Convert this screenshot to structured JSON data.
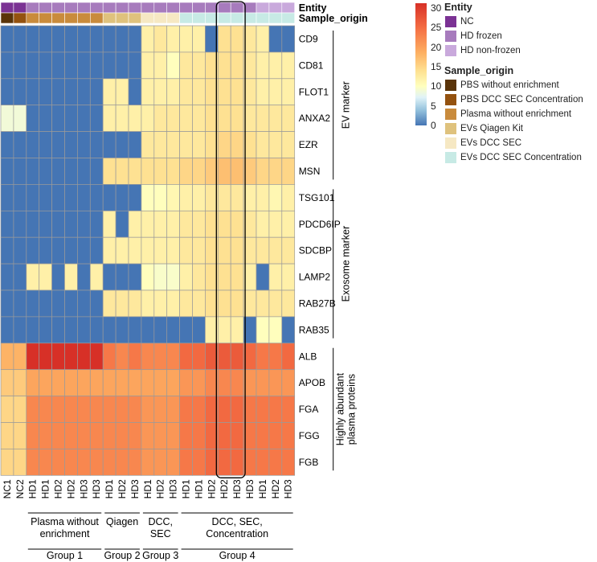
{
  "chart_data": {
    "type": "heatmap",
    "annotation_titles": {
      "entity": "Entity",
      "sample_origin": "Sample_origin"
    },
    "columns": [
      "NC1",
      "NC2",
      "HD1",
      "HD1",
      "HD2",
      "HD2",
      "HD3",
      "HD3",
      "HD1",
      "HD2",
      "HD3",
      "HD1",
      "HD2",
      "HD3",
      "HD1",
      "HD1",
      "HD2",
      "HD2",
      "HD3",
      "HD3",
      "HD1",
      "HD2",
      "HD3"
    ],
    "column_entity": [
      "NC",
      "NC",
      "HD frozen",
      "HD frozen",
      "HD frozen",
      "HD frozen",
      "HD frozen",
      "HD frozen",
      "HD frozen",
      "HD frozen",
      "HD frozen",
      "HD frozen",
      "HD frozen",
      "HD frozen",
      "HD frozen",
      "HD frozen",
      "HD frozen",
      "HD frozen",
      "HD frozen",
      "HD frozen",
      "HD non-frozen",
      "HD non-frozen",
      "HD non-frozen"
    ],
    "column_origin": [
      "PBS without enrichment",
      "PBS DCC SEC Concentration",
      "Plasma without enrichment",
      "Plasma without enrichment",
      "Plasma without enrichment",
      "Plasma without enrichment",
      "Plasma without enrichment",
      "Plasma without enrichment",
      "EVs Qiagen Kit",
      "EVs Qiagen Kit",
      "EVs Qiagen Kit",
      "EVs DCC SEC",
      "EVs DCC SEC",
      "EVs DCC SEC",
      "EVs DCC SEC Concentration",
      "EVs DCC SEC Concentration",
      "EVs DCC SEC Concentration",
      "EVs DCC SEC Concentration",
      "EVs DCC SEC Concentration",
      "EVs DCC SEC Concentration",
      "EVs DCC SEC Concentration",
      "EVs DCC SEC Concentration",
      "EVs DCC SEC Concentration"
    ],
    "rows": [
      "CD9",
      "CD81",
      "FLOT1",
      "ANXA2",
      "EZR",
      "MSN",
      "TSG101",
      "PDCD6IP",
      "SDCBP",
      "LAMP2",
      "RAB27B",
      "RAB35",
      "ALB",
      "APOB",
      "FGA",
      "FGG",
      "FGB"
    ],
    "values": [
      [
        0,
        0,
        0,
        0,
        0,
        0,
        0,
        0,
        0,
        0,
        0,
        15,
        16,
        15,
        15,
        15,
        0,
        17,
        17,
        16,
        15,
        0,
        0
      ],
      [
        0,
        0,
        0,
        0,
        0,
        0,
        0,
        0,
        0,
        0,
        0,
        15,
        15,
        13,
        16,
        16,
        17,
        17,
        17,
        16,
        15,
        15,
        15
      ],
      [
        0,
        0,
        0,
        0,
        0,
        0,
        0,
        0,
        15,
        15,
        0,
        15,
        15,
        15,
        16,
        16,
        17,
        17,
        17,
        16,
        15,
        15,
        15
      ],
      [
        11,
        11,
        0,
        0,
        0,
        0,
        0,
        0,
        15,
        15,
        15,
        15,
        16,
        16,
        16,
        16,
        17,
        17,
        17,
        16,
        16,
        16,
        16
      ],
      [
        0,
        0,
        0,
        0,
        0,
        0,
        0,
        0,
        0,
        0,
        0,
        16,
        16,
        16,
        16,
        16,
        17,
        18,
        18,
        17,
        16,
        16,
        16
      ],
      [
        0,
        0,
        0,
        0,
        0,
        0,
        0,
        0,
        17,
        17,
        17,
        17,
        17,
        17,
        18,
        18,
        19,
        20,
        20,
        19,
        18,
        18,
        18
      ],
      [
        0,
        0,
        0,
        0,
        0,
        0,
        0,
        0,
        0,
        0,
        0,
        13,
        13,
        14,
        15,
        15,
        16,
        16,
        16,
        15,
        15,
        14,
        15
      ],
      [
        0,
        0,
        0,
        0,
        0,
        0,
        0,
        0,
        15,
        0,
        15,
        15,
        15,
        15,
        16,
        16,
        17,
        17,
        17,
        16,
        15,
        15,
        15
      ],
      [
        0,
        0,
        0,
        0,
        0,
        0,
        0,
        0,
        15,
        15,
        15,
        15,
        15,
        15,
        16,
        16,
        17,
        17,
        17,
        16,
        16,
        16,
        16
      ],
      [
        0,
        0,
        15,
        15,
        0,
        15,
        0,
        15,
        0,
        0,
        0,
        13,
        12,
        12,
        15,
        16,
        17,
        17,
        17,
        15,
        0,
        15,
        15
      ],
      [
        0,
        0,
        0,
        0,
        0,
        0,
        0,
        0,
        16,
        16,
        16,
        15,
        15,
        15,
        16,
        16,
        17,
        17,
        17,
        16,
        16,
        16,
        16
      ],
      [
        0,
        0,
        0,
        0,
        0,
        0,
        0,
        0,
        0,
        0,
        0,
        0,
        0,
        0,
        0,
        0,
        15,
        15,
        15,
        0,
        13,
        13,
        0
      ],
      [
        21,
        21,
        30,
        30,
        30,
        30,
        30,
        30,
        25,
        24,
        25,
        24,
        24,
        24,
        26,
        26,
        27,
        27,
        27,
        26,
        25,
        25,
        26
      ],
      [
        19,
        19,
        22,
        22,
        22,
        22,
        22,
        22,
        22,
        22,
        22,
        22,
        22,
        22,
        23,
        23,
        24,
        24,
        24,
        23,
        23,
        23,
        23
      ],
      [
        18,
        18,
        24,
        24,
        24,
        24,
        24,
        24,
        24,
        24,
        24,
        23,
        23,
        23,
        25,
        25,
        26,
        26,
        26,
        25,
        25,
        25,
        25
      ],
      [
        18,
        18,
        24,
        24,
        24,
        24,
        24,
        24,
        24,
        24,
        24,
        23,
        23,
        23,
        25,
        25,
        26,
        26,
        26,
        25,
        25,
        25,
        25
      ],
      [
        18,
        18,
        24,
        24,
        24,
        24,
        24,
        24,
        24,
        24,
        24,
        23,
        23,
        23,
        25,
        25,
        26,
        26,
        26,
        25,
        25,
        25,
        25
      ]
    ],
    "color_scale": {
      "min": 0,
      "max": 30,
      "ticks": [
        30,
        25,
        20,
        15,
        10,
        5,
        0
      ]
    },
    "colors": {
      "scale": [
        "#4575b4",
        "#91bfdb",
        "#e0f3f8",
        "#ffffbf",
        "#fee090",
        "#fdae61",
        "#f46d43",
        "#d73027"
      ],
      "entity": {
        "NC": "#7b3294",
        "HD frozen": "#a77bbd",
        "HD non-frozen": "#c9a9dc"
      },
      "sample_origin": {
        "PBS without enrichment": "#5a3409",
        "PBS DCC SEC Concentration": "#94520f",
        "Plasma without enrichment": "#c98b3c",
        "EVs Qiagen Kit": "#dfc27d",
        "EVs DCC SEC": "#f6e8c3",
        "EVs DCC SEC Concentration": "#c7eae5"
      }
    },
    "row_groups": [
      {
        "label": "EV marker",
        "rows": [
          "CD9",
          "CD81",
          "FLOT1",
          "ANXA2",
          "EZR",
          "MSN"
        ]
      },
      {
        "label": "Exosome marker",
        "rows": [
          "TSG101",
          "PDCD6IP",
          "SDCBP",
          "LAMP2",
          "RAB27B",
          "RAB35"
        ]
      },
      {
        "label": "Highly abundant plasma proteins",
        "rows": [
          "ALB",
          "APOB",
          "FGA",
          "FGG",
          "FGB"
        ]
      }
    ],
    "column_groups": [
      {
        "label": "Plasma without enrichment",
        "lines": [
          "Plasma without",
          "enrichment"
        ],
        "group": "Group 1"
      },
      {
        "label": "Qiagen",
        "lines": [
          "Qiagen"
        ],
        "group": "Group 2"
      },
      {
        "label": "DCC, SEC",
        "lines": [
          "DCC,",
          "SEC"
        ],
        "group": "Group 3"
      },
      {
        "label": "DCC, SEC, Concentration",
        "lines": [
          "DCC, SEC,",
          "Concentration"
        ],
        "group": "Group 4"
      }
    ],
    "highlight": {
      "columns": [
        "HD2",
        "HD3"
      ],
      "description": "rounded box around two Group 4 columns"
    }
  }
}
